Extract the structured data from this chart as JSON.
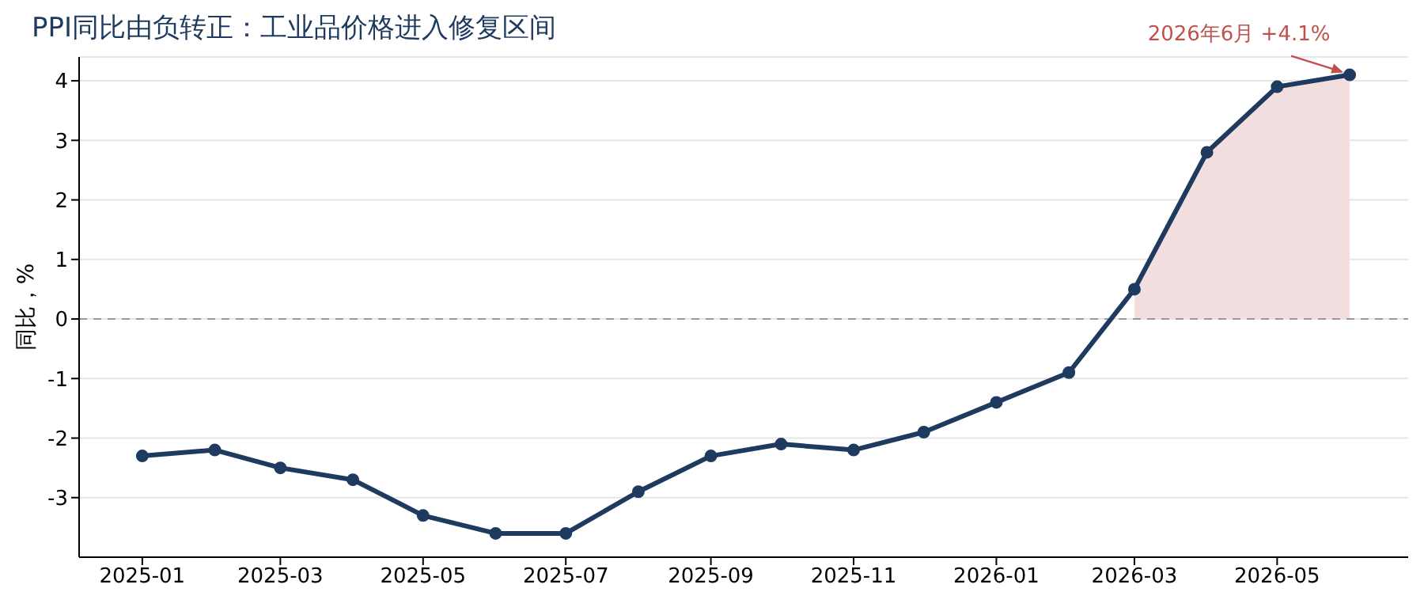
{
  "chart_data": {
    "type": "line",
    "title": "PPI同比由负转正：工业品价格进入修复区间",
    "ylabel": "同比，%",
    "x": [
      "2025-01",
      "2025-02",
      "2025-03",
      "2025-04",
      "2025-05",
      "2025-06",
      "2025-07",
      "2025-08",
      "2025-09",
      "2025-10",
      "2025-11",
      "2025-12",
      "2026-01",
      "2026-02",
      "2026-03",
      "2026-04",
      "2026-05",
      "2026-06"
    ],
    "series": [
      {
        "type": "area",
        "color": "#f2dede",
        "x": [
          "2026-03",
          "2026-04",
          "2026-05",
          "2026-06"
        ],
        "values": [
          0.5,
          2.8,
          3.9,
          4.1
        ]
      },
      {
        "marker": "circle",
        "color": "#1f3a5f",
        "values": [
          -2.3,
          -2.2,
          -2.5,
          -2.7,
          -3.3,
          -3.6,
          -3.6,
          -2.9,
          -2.3,
          -2.1,
          -2.2,
          -1.9,
          -1.4,
          -0.9,
          0.5,
          2.8,
          3.9,
          4.1
        ]
      }
    ],
    "xlim": [
      "2024-12-05",
      "2026-06-26"
    ],
    "xticks": [
      "2025-01",
      "2025-03",
      "2025-05",
      "2025-07",
      "2025-09",
      "2025-11",
      "2026-01",
      "2026-03",
      "2026-05"
    ],
    "ylim": [
      -4,
      4.4
    ],
    "yticks": [
      -3,
      -2,
      -1,
      0,
      1,
      2,
      3,
      4
    ],
    "ref_lines": [
      {
        "axis": "y",
        "value": 0,
        "color": "#999999",
        "line_style": "dashed"
      }
    ],
    "annotations": [
      {
        "text": "2026年6月 +4.1%",
        "x": "2026-06",
        "y": 4.1
      }
    ],
    "grid": "y",
    "line_style": "solid"
  }
}
